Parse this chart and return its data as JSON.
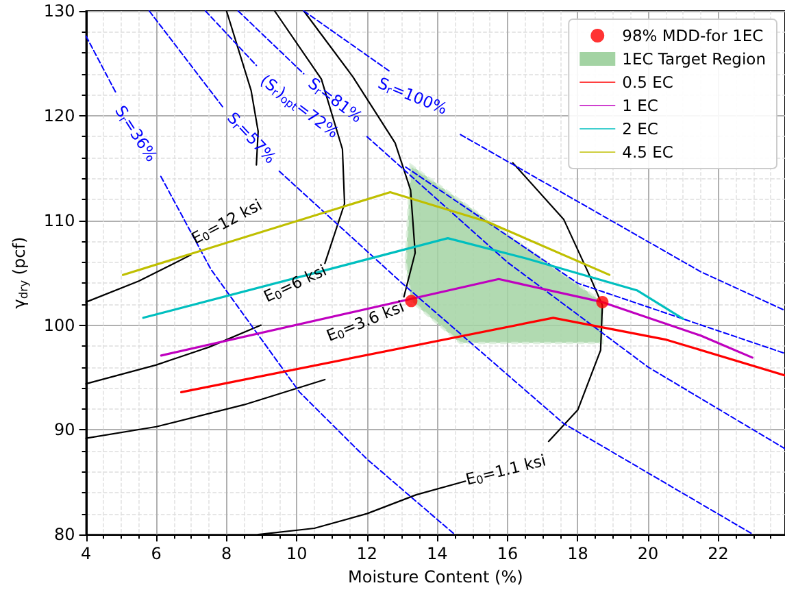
{
  "chart_data": {
    "type": "line",
    "xlabel": "Moisture Content (%)",
    "ylabel": "γ$_{dry}$ (pcf)",
    "xlim": [
      4,
      23.9
    ],
    "ylim": [
      80,
      130
    ],
    "xticks": [
      4,
      6,
      8,
      10,
      12,
      14,
      16,
      18,
      20,
      22
    ],
    "yticks": [
      80,
      90,
      100,
      110,
      120,
      130
    ],
    "grid": true,
    "legend": "top right",
    "series": [
      {
        "type": "scatter",
        "name": "98% MDD-for 1EC",
        "color": "#ff0000",
        "marker": "circle",
        "x": [
          13.26,
          18.7
        ],
        "values": [
          102.3,
          102.2
        ]
      },
      {
        "type": "area",
        "name": "1EC Target Region",
        "color": "#a3d3a3",
        "line_style": "dashed",
        "x": [
          13.24,
          13.1,
          13.26,
          14.65,
          18.7,
          18.7,
          13.24
        ],
        "values": [
          115.3,
          106,
          102.3,
          98.3,
          98.3,
          102.2,
          115.3
        ]
      },
      {
        "name": "0.5 EC",
        "color": "#ff0000",
        "line_style": "solid",
        "x": [
          6.71,
          17.3,
          20.53,
          23.9
        ],
        "values": [
          93.6,
          100.7,
          98.6,
          95.2
        ]
      },
      {
        "name": "1 EC",
        "color": "#bf00bf",
        "line_style": "solid",
        "x": [
          6.14,
          15.75,
          18.7,
          21.5,
          22.97
        ],
        "values": [
          97.1,
          104.4,
          102.2,
          99.0,
          96.9
        ]
      },
      {
        "name": "2 EC",
        "color": "#00bfbf",
        "line_style": "solid",
        "x": [
          5.63,
          14.3,
          16.5,
          19.7,
          21.0
        ],
        "values": [
          100.7,
          108.3,
          106.4,
          103.3,
          100.6
        ]
      },
      {
        "name": "4.5 EC",
        "color": "#bfbf00",
        "line_style": "solid",
        "x": [
          5.05,
          12.66,
          15.4,
          18.9
        ],
        "values": [
          104.8,
          112.7,
          109.9,
          104.8
        ]
      },
      {
        "type": "line",
        "color": "#000000",
        "line_style": "solid",
        "x": [
          4,
          5.5,
          6.98
        ],
        "values": [
          102.2,
          104.2,
          106.7
        ]
      },
      {
        "type": "line",
        "color": "#000000",
        "line_style": "solid",
        "x": [
          4,
          6,
          7.5,
          8.98
        ],
        "values": [
          94.4,
          96.2,
          97.9,
          100.0
        ]
      },
      {
        "type": "line",
        "color": "#000000",
        "line_style": "solid",
        "x": [
          4,
          6,
          8.5,
          10.8
        ],
        "values": [
          89.2,
          90.3,
          92.4,
          94.8
        ]
      },
      {
        "type": "line",
        "color": "#000000",
        "line_style": "solid",
        "x": [
          8.9,
          10.5,
          12,
          13.4,
          14.8,
          16,
          17.17,
          18.0,
          18.65,
          18.7,
          18.3,
          17.6,
          16.15
        ],
        "values": [
          80.0,
          80.6,
          82.0,
          83.8,
          85.1,
          null,
          88.9,
          91.9,
          97.6,
          101.9,
          105.0,
          110.1,
          115.5
        ]
      },
      {
        "type": "line",
        "color": "#000000",
        "line_style": "solid",
        "x": [
          8.0,
          8.7,
          8.9,
          8.85
        ],
        "values": [
          130,
          122.4,
          118.5,
          115.3
        ]
      },
      {
        "type": "line",
        "color": "#000000",
        "line_style": "solid",
        "x": [
          9.37,
          10.7,
          11.3,
          11.36,
          10.8
        ],
        "values": [
          130,
          123.5,
          116.8,
          111.6,
          105.9
        ]
      },
      {
        "type": "line",
        "color": "#000000",
        "line_style": "solid",
        "x": [
          10.2,
          11.6,
          12.8,
          13.24,
          13.37,
          13.05
        ],
        "values": [
          130,
          123.7,
          117.4,
          112.9,
          106.9,
          102.7
        ]
      },
      {
        "type": "line",
        "color": "#0000ff",
        "line_style": "dashed",
        "x": [
          4,
          4.85,
          5.4,
          6.13,
          7.56,
          10.08,
          12,
          14.5
        ],
        "values": [
          127.6,
          122.2,
          null,
          114.2,
          105.3,
          93.6,
          87.2,
          80.0
        ]
      },
      {
        "type": "line",
        "color": "#0000ff",
        "line_style": "dashed",
        "x": [
          5.8,
          7.9,
          8.7,
          9.5,
          13,
          17.6,
          23
        ],
        "values": [
          130,
          120.8,
          null,
          114.7,
          104,
          90.6,
          80
        ]
      },
      {
        "type": "line",
        "color": "#0000ff",
        "line_style": "dashed",
        "x": [
          7.4,
          8.85,
          10.1,
          12,
          16,
          20,
          23.9
        ],
        "values": [
          130,
          124.8,
          null,
          118,
          106,
          96,
          88.2
        ]
      },
      {
        "type": "line",
        "color": "#0000ff",
        "line_style": "dashed",
        "x": [
          8.33,
          10.2,
          11.5,
          13.1,
          18,
          23.9
        ],
        "values": [
          130,
          124,
          null,
          115.1,
          104,
          97.3
        ]
      },
      {
        "type": "line",
        "color": "#0000ff",
        "line_style": "dashed",
        "x": [
          10.2,
          12.66,
          13.5,
          14.66,
          21.5,
          23.9
        ],
        "values": [
          130,
          124.2,
          null,
          118.2,
          105.1,
          101.4
        ]
      }
    ],
    "annotations": [
      "S$_{r}$=36%",
      "S$_{r}$=57%",
      "(S$_{r}$)$_{opt}$=72%",
      "S$_{r}$=81%",
      "S$_{r}$=100%",
      "E$_{0}$=12 ksi",
      "E$_{0}$=6 ksi",
      "E$_{0}$=3.6 ksi",
      "E$_{0}$=1.1 ksi"
    ]
  }
}
